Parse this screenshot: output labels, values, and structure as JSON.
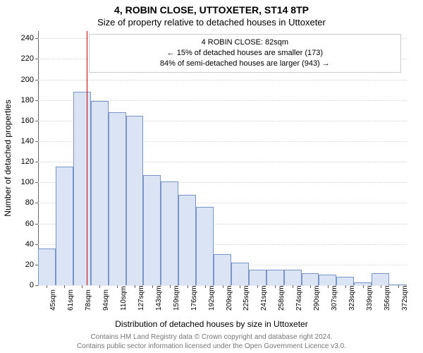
{
  "title": "4, ROBIN CLOSE, UTTOXETER, ST14 8TP",
  "subtitle": "Size of property relative to detached houses in Uttoxeter",
  "y_axis_label": "Number of detached properties",
  "x_axis_label": "Distribution of detached houses by size in Uttoxeter",
  "footer_line1": "Contains HM Land Registry data © Crown copyright and database right 2024.",
  "footer_line2": "Contains public sector information licensed under the Open Government Licence v3.0.",
  "chart": {
    "type": "histogram",
    "background_color": "#ffffff",
    "grid_color": "#d8d8d8",
    "axis_color": "#666666",
    "bar_fill": "#dbe4f4",
    "bar_border": "#7a94c8",
    "bar_border_width": 1,
    "vline_color": "#cc0000",
    "vline_width": 1.5,
    "vline_at_x": 82,
    "title_fontsize": 14,
    "subtitle_fontsize": 13,
    "axis_label_fontsize": 12,
    "tick_fontsize": 11,
    "xtick_fontsize": 10,
    "footer_color": "#777777",
    "footer_fontsize": 10,
    "annotation_border": "#cccccc",
    "x_min": 37,
    "x_max": 380,
    "bin_width": 16.36,
    "ylim": [
      0,
      247
    ],
    "y_ticks": [
      0,
      20,
      40,
      60,
      80,
      100,
      120,
      140,
      160,
      180,
      200,
      220,
      240
    ],
    "x_tick_labels": [
      "45sqm",
      "61sqm",
      "78sqm",
      "94sqm",
      "110sqm",
      "127sqm",
      "143sqm",
      "159sqm",
      "176sqm",
      "192sqm",
      "209sqm",
      "225sqm",
      "241sqm",
      "258sqm",
      "274sqm",
      "290sqm",
      "307sqm",
      "323sqm",
      "339sqm",
      "356sqm",
      "372sqm"
    ],
    "bar_values": [
      36,
      115,
      188,
      179,
      168,
      165,
      107,
      101,
      88,
      76,
      30,
      22,
      15,
      15,
      15,
      12,
      10,
      8,
      3,
      12,
      1
    ],
    "annotation": {
      "line1": "4 ROBIN CLOSE: 82sqm",
      "line2": "← 15% of detached houses are smaller (173)",
      "line3": "84% of semi-detached houses are larger (943) →"
    }
  }
}
